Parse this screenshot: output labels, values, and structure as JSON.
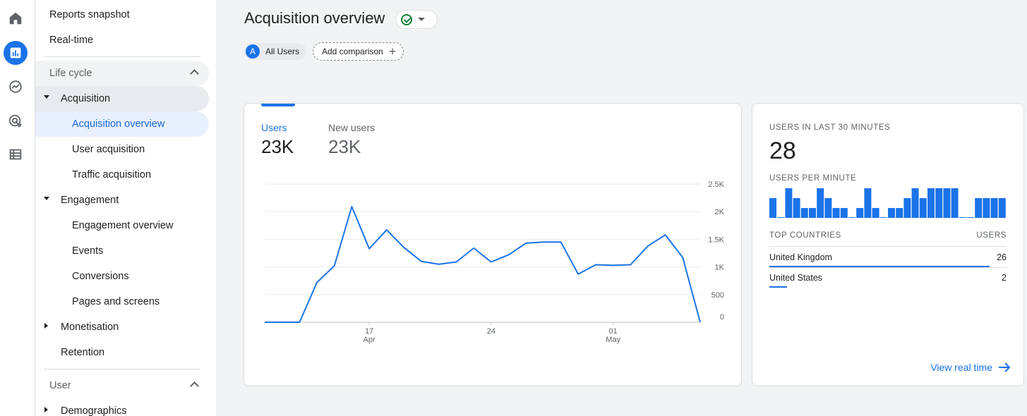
{
  "rail": {
    "icons": [
      "home-icon",
      "reports-icon",
      "explore-icon",
      "advertising-icon",
      "configure-icon"
    ]
  },
  "nav": {
    "reports_snapshot": "Reports snapshot",
    "realtime": "Real-time",
    "lifecycle_section": "Life cycle",
    "acquisition": "Acquisition",
    "acquisition_overview": "Acquisition overview",
    "user_acquisition": "User acquisition",
    "traffic_acquisition": "Traffic acquisition",
    "engagement": "Engagement",
    "engagement_overview": "Engagement overview",
    "events": "Events",
    "conversions": "Conversions",
    "pages_and_screens": "Pages and screens",
    "monetisation": "Monetisation",
    "retention": "Retention",
    "user_section": "User",
    "demographics": "Demographics"
  },
  "header": {
    "title": "Acquisition overview",
    "segment_avatar": "A",
    "segment_label": "All Users",
    "add_comparison": "Add comparison"
  },
  "main_card": {
    "users_label": "Users",
    "users_value": "23K",
    "new_users_label": "New users",
    "new_users_value": "23K"
  },
  "chart_data": {
    "type": "line",
    "series": [
      {
        "values": [
          0,
          0,
          0,
          720,
          1020,
          2090,
          1330,
          1670,
          1350,
          1100,
          1050,
          1090,
          1340,
          1090,
          1220,
          1430,
          1450,
          1450,
          870,
          1040,
          1030,
          1040,
          1380,
          1580,
          1170,
          0
        ]
      }
    ],
    "ylim": [
      0,
      2500
    ],
    "y_ticks": [
      "0",
      "500",
      "1K",
      "1.5K",
      "2K",
      "2.5K"
    ],
    "x_ticks": [
      {
        "day": "17",
        "month": "Apr"
      },
      {
        "day": "24",
        "month": ""
      },
      {
        "day": "01",
        "month": "May"
      }
    ],
    "grid": true,
    "color": "#1a73e8"
  },
  "realtime": {
    "users_last_30_label": "USERS IN LAST 30 MINUTES",
    "users_last_30_value": "28",
    "users_per_minute_label": "USERS PER MINUTE",
    "per_minute": [
      2,
      0,
      3,
      2,
      1,
      1,
      3,
      2,
      1,
      1,
      0,
      1,
      3,
      1,
      0,
      1,
      1,
      2,
      3,
      2,
      3,
      3,
      3,
      3,
      0,
      0,
      2,
      2,
      2,
      2
    ],
    "top_countries_label": "TOP COUNTRIES",
    "users_col_label": "USERS",
    "countries": [
      {
        "name": "United Kingdom",
        "value": "26",
        "share": 1.0
      },
      {
        "name": "United States",
        "value": "2",
        "share": 0.08
      }
    ],
    "view_realtime": "View real time"
  },
  "colors": {
    "accent": "#1a73e8",
    "success": "#188038"
  }
}
